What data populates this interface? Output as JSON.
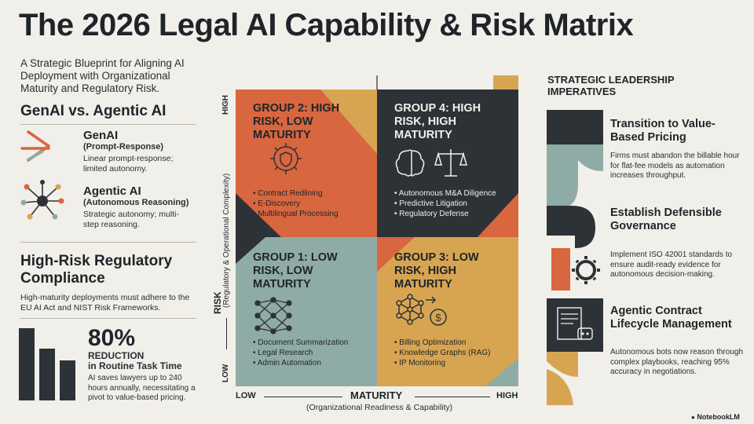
{
  "title": "The 2026 Legal AI Capability & Risk Matrix",
  "subtitle": "A Strategic Blueprint for Aligning AI Deployment with Organizational Maturity and Regulatory Risk.",
  "left": {
    "section_title": "GenAI vs. Agentic AI",
    "genai": {
      "title": "GenAI",
      "sub": "(Prompt-Response)",
      "desc": "Linear prompt-response; limited autonomy."
    },
    "agentic": {
      "title": "Agentic AI",
      "sub": "(Autonomous Reasoning)",
      "desc": "Strategic autonomy; multi-step reasoning."
    },
    "compliance_title": "High-Risk Regulatory Compliance",
    "compliance_desc": "High-maturity deployments must adhere to the EU AI Act and NIST Risk Frameworks.",
    "stat": {
      "value": "80%",
      "label1": "REDUCTION",
      "label2": "in Routine Task Time",
      "desc": "AI saves lawyers up to 240 hours annually, necessitating a pivot to value-based pricing.",
      "bars": [
        1.0,
        0.72,
        0.55
      ]
    }
  },
  "matrix": {
    "y_axis": {
      "title": "RISK",
      "sub": "(Regulatory & Operational Complexity)",
      "high": "HIGH",
      "low": "LOW"
    },
    "x_axis": {
      "title": "MATURITY",
      "sub": "(Organizational Readiness & Capability)",
      "low": "LOW",
      "high": "HIGH"
    },
    "quadrants": {
      "g2": {
        "title": "GROUP 2: HIGH RISK, LOW MATURITY",
        "items": [
          "Contract Redlining",
          "E-Discovery",
          "Multilingual Processing"
        ],
        "color": "#d8663f",
        "icon": "shield-circuit-icon"
      },
      "g4": {
        "title": "GROUP 4: HIGH RISK, HIGH MATURITY",
        "items": [
          "Autonomous M&A Diligence",
          "Predictive Litigation",
          "Regulatory Defense"
        ],
        "color": "#2d3237",
        "icon": "brain-scales-icon"
      },
      "g1": {
        "title": "GROUP 1: LOW RISK, LOW MATURITY",
        "items": [
          "Document Summarization",
          "Legal Research",
          "Admin Automation"
        ],
        "color": "#8faba5",
        "icon": "neural-network-icon"
      },
      "g3": {
        "title": "GROUP 3: LOW RISK, HIGH MATURITY",
        "items": [
          "Billing Optimization",
          "Knowledge Graphs (RAG)",
          "IP Monitoring"
        ],
        "color": "#d7a552",
        "icon": "graph-dollar-icon"
      }
    }
  },
  "right": {
    "section_title": "STRATEGIC LEADERSHIP IMPERATIVES",
    "items": [
      {
        "title": "Transition to Value-Based Pricing",
        "desc": "Firms must abandon the billable hour for flat-fee models as automation increases throughput."
      },
      {
        "title": "Establish Defensible Governance",
        "desc": "Implement ISO 42001 standards to ensure audit-ready evidence for autonomous decision-making."
      },
      {
        "title": "Agentic Contract Lifecycle Management",
        "desc": "Autonomous bots now reason through complex playbooks, reaching 95% accuracy in negotiations."
      }
    ]
  },
  "watermark": "NotebookLM",
  "colors": {
    "orange": "#d8663f",
    "dark": "#2d3237",
    "teal": "#8faba5",
    "mustard": "#d7a552",
    "background": "#f1efe9"
  }
}
